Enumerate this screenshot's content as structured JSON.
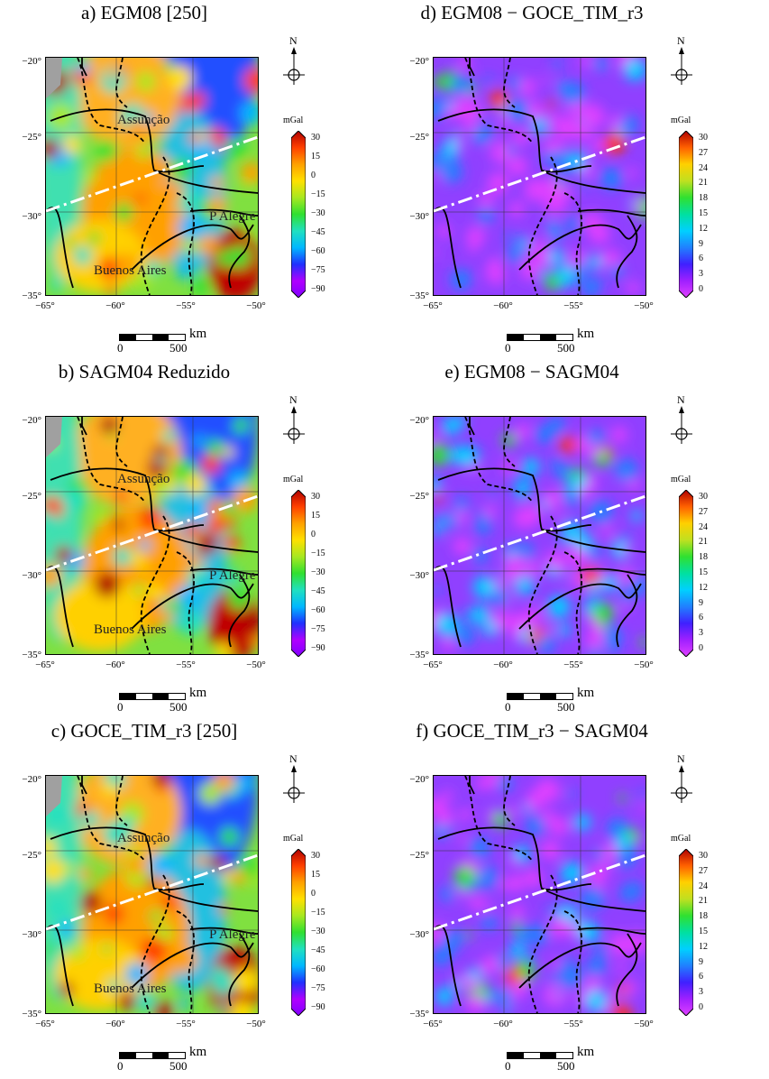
{
  "panels": [
    {
      "id": "a",
      "title": "a) EGM08 [250]",
      "type": "anomaly",
      "cities": true,
      "seed": 11
    },
    {
      "id": "d",
      "title": "d) EGM08 − GOCE_TIM_r3",
      "type": "diff",
      "cities": false,
      "seed": 23
    },
    {
      "id": "b",
      "title": "b) SAGM04 Reduzido",
      "type": "anomaly",
      "cities": true,
      "seed": 37
    },
    {
      "id": "e",
      "title": "e) EGM08 − SAGM04",
      "type": "diff",
      "cities": false,
      "seed": 41
    },
    {
      "id": "c",
      "title": "c) GOCE_TIM_r3 [250]",
      "type": "anomaly",
      "cities": true,
      "seed": 53
    },
    {
      "id": "f",
      "title": "f) GOCE_TIM_r3 − SAGM04",
      "type": "diff",
      "cities": false,
      "seed": 67
    }
  ],
  "lat_labels": [
    "−20°",
    "−25°",
    "−30°",
    "−35°"
  ],
  "lon_labels": [
    "−65°",
    "−60°",
    "−55°",
    "−50°"
  ],
  "cities": {
    "asuncion": "Assunção",
    "palegre": "P Alegre",
    "buenosaires": "Buenos Aires"
  },
  "north_label": "N",
  "colorbar": {
    "unit": "mGal",
    "anomaly_ticks": [
      "30",
      "15",
      "0",
      "−15",
      "−30",
      "−45",
      "−60",
      "−75",
      "−90"
    ],
    "diff_ticks": [
      "30",
      "27",
      "24",
      "21",
      "18",
      "15",
      "12",
      "9",
      "6",
      "3",
      "0"
    ]
  },
  "scalebar": {
    "zero": "0",
    "mid": "500",
    "unit": "km"
  },
  "colors": {
    "profile_line": "#ffffff",
    "land_mask": "#a0a0a0",
    "boundary": "#000000"
  }
}
